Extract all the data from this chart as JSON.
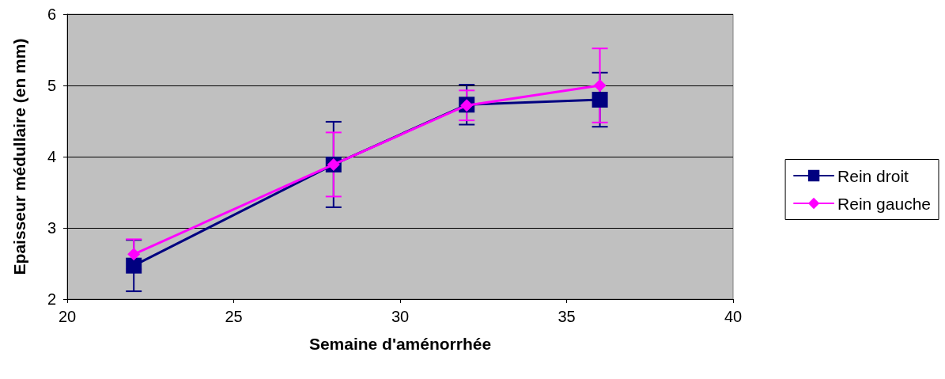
{
  "chart_data": {
    "type": "line",
    "xlabel": "Semaine d'aménorrhée",
    "ylabel": "Epaisseur médullaire (en mm)",
    "x": [
      22,
      28,
      32,
      36
    ],
    "series": [
      {
        "name": "Rein droit",
        "color": "#000080",
        "marker": "square",
        "values": [
          2.47,
          3.89,
          4.73,
          4.8
        ],
        "errors": [
          0.36,
          0.6,
          0.28,
          0.38
        ]
      },
      {
        "name": "Rein gauche",
        "color": "#ff00ff",
        "marker": "diamond",
        "values": [
          2.63,
          3.89,
          4.72,
          5.0
        ],
        "errors": [
          0.21,
          0.45,
          0.21,
          0.52
        ]
      }
    ],
    "xlim": [
      20,
      40
    ],
    "xticks": [
      20,
      25,
      30,
      35,
      40
    ],
    "ylim": [
      2,
      6
    ],
    "yticks": [
      2,
      3,
      4,
      5,
      6
    ],
    "grid": "y",
    "legend": "right",
    "line_style": "solid"
  }
}
